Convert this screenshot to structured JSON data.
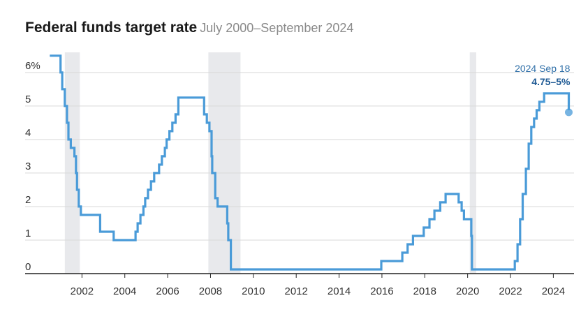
{
  "colors": {
    "line": "#4a9bd8",
    "recession": "#e8e9ec",
    "grid": "#d9d9d9",
    "axis": "#222222",
    "annotation": "#2f6fa8"
  },
  "chart_data": {
    "type": "line",
    "title": "Federal funds target rate",
    "subtitle": "July 2000–September 2024",
    "xlim": [
      2000.0,
      2024.9
    ],
    "ylim": [
      0,
      6.6
    ],
    "y_ticks": [
      {
        "value": 6,
        "label": "6%"
      },
      {
        "value": 5,
        "label": "5"
      },
      {
        "value": 4,
        "label": "4"
      },
      {
        "value": 3,
        "label": "3"
      },
      {
        "value": 2,
        "label": "2"
      },
      {
        "value": 1,
        "label": "1"
      },
      {
        "value": 0,
        "label": "0"
      }
    ],
    "x_ticks": [
      {
        "value": 2002,
        "label": "2002"
      },
      {
        "value": 2004,
        "label": "2004"
      },
      {
        "value": 2006,
        "label": "2006"
      },
      {
        "value": 2008,
        "label": "2008"
      },
      {
        "value": 2010,
        "label": "2010"
      },
      {
        "value": 2012,
        "label": "2012"
      },
      {
        "value": 2014,
        "label": "2014"
      },
      {
        "value": 2016,
        "label": "2016"
      },
      {
        "value": 2018,
        "label": "2018"
      },
      {
        "value": 2020,
        "label": "2020"
      },
      {
        "value": 2022,
        "label": "2022"
      },
      {
        "value": 2024,
        "label": "2024"
      }
    ],
    "recessions": [
      {
        "start": 2001.2,
        "end": 2001.9
      },
      {
        "start": 2007.9,
        "end": 2009.4
      },
      {
        "start": 2020.1,
        "end": 2020.4
      }
    ],
    "grid": true,
    "series": [
      {
        "steps": [
          [
            2000.5,
            6.5
          ],
          [
            2001.0,
            6.0
          ],
          [
            2001.08,
            5.5
          ],
          [
            2001.2,
            5.0
          ],
          [
            2001.3,
            4.5
          ],
          [
            2001.37,
            4.0
          ],
          [
            2001.48,
            3.75
          ],
          [
            2001.65,
            3.5
          ],
          [
            2001.72,
            3.0
          ],
          [
            2001.77,
            2.5
          ],
          [
            2001.85,
            2.0
          ],
          [
            2001.95,
            1.75
          ],
          [
            2002.85,
            1.25
          ],
          [
            2003.48,
            1.0
          ],
          [
            2004.5,
            1.25
          ],
          [
            2004.6,
            1.5
          ],
          [
            2004.73,
            1.75
          ],
          [
            2004.87,
            2.0
          ],
          [
            2004.95,
            2.25
          ],
          [
            2005.08,
            2.5
          ],
          [
            2005.22,
            2.75
          ],
          [
            2005.37,
            3.0
          ],
          [
            2005.6,
            3.25
          ],
          [
            2005.73,
            3.5
          ],
          [
            2005.87,
            3.75
          ],
          [
            2005.95,
            4.0
          ],
          [
            2006.08,
            4.25
          ],
          [
            2006.22,
            4.5
          ],
          [
            2006.37,
            4.75
          ],
          [
            2006.5,
            5.25
          ],
          [
            2007.7,
            4.75
          ],
          [
            2007.83,
            4.5
          ],
          [
            2007.95,
            4.25
          ],
          [
            2008.05,
            3.5
          ],
          [
            2008.08,
            3.0
          ],
          [
            2008.22,
            2.25
          ],
          [
            2008.33,
            2.0
          ],
          [
            2008.78,
            1.5
          ],
          [
            2008.83,
            1.0
          ],
          [
            2008.95,
            0.125
          ],
          [
            2015.97,
            0.375
          ],
          [
            2016.95,
            0.625
          ],
          [
            2017.2,
            0.875
          ],
          [
            2017.45,
            1.125
          ],
          [
            2017.95,
            1.375
          ],
          [
            2018.22,
            1.625
          ],
          [
            2018.45,
            1.875
          ],
          [
            2018.72,
            2.125
          ],
          [
            2018.97,
            2.375
          ],
          [
            2019.58,
            2.125
          ],
          [
            2019.72,
            1.875
          ],
          [
            2019.83,
            1.625
          ],
          [
            2020.17,
            1.125
          ],
          [
            2020.2,
            0.125
          ],
          [
            2022.2,
            0.375
          ],
          [
            2022.33,
            0.875
          ],
          [
            2022.45,
            1.625
          ],
          [
            2022.57,
            2.375
          ],
          [
            2022.72,
            3.125
          ],
          [
            2022.85,
            3.875
          ],
          [
            2022.97,
            4.375
          ],
          [
            2023.1,
            4.625
          ],
          [
            2023.22,
            4.875
          ],
          [
            2023.35,
            5.125
          ],
          [
            2023.57,
            5.375
          ],
          [
            2024.72,
            4.875
          ]
        ],
        "end_x": 2024.72
      }
    ],
    "annotation": {
      "x": 2024.72,
      "y": 4.875,
      "date_label": "2024 Sep 18",
      "value_label": "4.75–5%"
    }
  }
}
